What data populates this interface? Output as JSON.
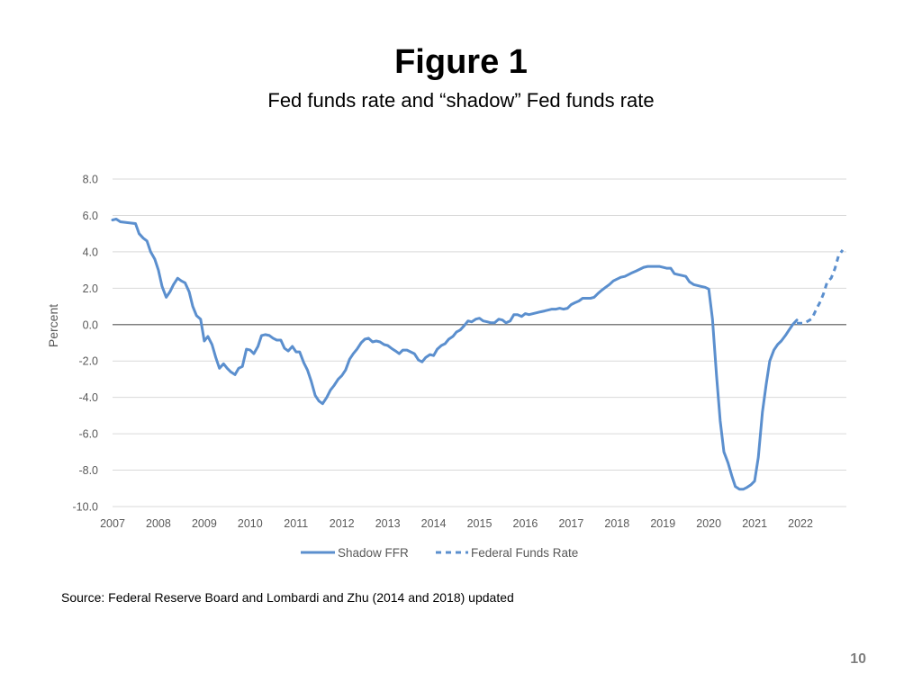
{
  "slide": {
    "title": "Figure 1",
    "subtitle": "Fed funds rate and “shadow” Fed funds rate",
    "source": "Source: Federal Reserve Board and Lombardi and Zhu (2014 and 2018) updated",
    "page_number": "10"
  },
  "colors": {
    "series": "#5B8FCE",
    "zero_line": "#808080",
    "grid": "#D9D9D9",
    "text": "#595959"
  },
  "chart_data": {
    "type": "line",
    "title": "",
    "xlabel": "",
    "ylabel": "Percent",
    "xlim": [
      2007.0,
      2023.0
    ],
    "ylim": [
      -10.0,
      8.0
    ],
    "x_ticks": [
      "2007",
      "2008",
      "2009",
      "2010",
      "2011",
      "2012",
      "2013",
      "2014",
      "2015",
      "2016",
      "2017",
      "2018",
      "2019",
      "2020",
      "2021",
      "2022"
    ],
    "y_ticks": [
      "8.0",
      "6.0",
      "4.0",
      "2.0",
      "0.0",
      "-2.0",
      "-4.0",
      "-6.0",
      "-8.0",
      "-10.0"
    ],
    "grid": true,
    "legend_position": "bottom",
    "series": [
      {
        "name": "Shadow FFR",
        "style": "solid",
        "points": [
          [
            2007.0,
            5.75
          ],
          [
            2007.08,
            5.8
          ],
          [
            2007.17,
            5.65
          ],
          [
            2007.33,
            5.6
          ],
          [
            2007.5,
            5.55
          ],
          [
            2007.58,
            5.0
          ],
          [
            2007.67,
            4.75
          ],
          [
            2007.75,
            4.6
          ],
          [
            2007.83,
            4.0
          ],
          [
            2007.92,
            3.6
          ],
          [
            2008.0,
            3.0
          ],
          [
            2008.08,
            2.1
          ],
          [
            2008.17,
            1.5
          ],
          [
            2008.25,
            1.8
          ],
          [
            2008.33,
            2.2
          ],
          [
            2008.42,
            2.55
          ],
          [
            2008.5,
            2.4
          ],
          [
            2008.58,
            2.3
          ],
          [
            2008.67,
            1.8
          ],
          [
            2008.75,
            1.0
          ],
          [
            2008.83,
            0.5
          ],
          [
            2008.92,
            0.3
          ],
          [
            2009.0,
            -0.9
          ],
          [
            2009.08,
            -0.65
          ],
          [
            2009.17,
            -1.1
          ],
          [
            2009.25,
            -1.8
          ],
          [
            2009.33,
            -2.4
          ],
          [
            2009.42,
            -2.15
          ],
          [
            2009.5,
            -2.4
          ],
          [
            2009.58,
            -2.6
          ],
          [
            2009.67,
            -2.75
          ],
          [
            2009.75,
            -2.4
          ],
          [
            2009.83,
            -2.3
          ],
          [
            2009.92,
            -1.35
          ],
          [
            2010.0,
            -1.4
          ],
          [
            2010.08,
            -1.6
          ],
          [
            2010.17,
            -1.2
          ],
          [
            2010.25,
            -0.6
          ],
          [
            2010.33,
            -0.55
          ],
          [
            2010.42,
            -0.6
          ],
          [
            2010.5,
            -0.75
          ],
          [
            2010.58,
            -0.85
          ],
          [
            2010.67,
            -0.85
          ],
          [
            2010.75,
            -1.3
          ],
          [
            2010.83,
            -1.45
          ],
          [
            2010.92,
            -1.2
          ],
          [
            2011.0,
            -1.5
          ],
          [
            2011.08,
            -1.5
          ],
          [
            2011.17,
            -2.1
          ],
          [
            2011.25,
            -2.5
          ],
          [
            2011.33,
            -3.1
          ],
          [
            2011.42,
            -3.9
          ],
          [
            2011.5,
            -4.2
          ],
          [
            2011.58,
            -4.35
          ],
          [
            2011.67,
            -4.0
          ],
          [
            2011.75,
            -3.6
          ],
          [
            2011.83,
            -3.35
          ],
          [
            2011.92,
            -3.0
          ],
          [
            2012.0,
            -2.8
          ],
          [
            2012.08,
            -2.5
          ],
          [
            2012.17,
            -1.9
          ],
          [
            2012.25,
            -1.6
          ],
          [
            2012.33,
            -1.35
          ],
          [
            2012.42,
            -1.0
          ],
          [
            2012.5,
            -0.8
          ],
          [
            2012.58,
            -0.75
          ],
          [
            2012.67,
            -0.95
          ],
          [
            2012.75,
            -0.9
          ],
          [
            2012.83,
            -0.95
          ],
          [
            2012.92,
            -1.1
          ],
          [
            2013.0,
            -1.15
          ],
          [
            2013.08,
            -1.3
          ],
          [
            2013.17,
            -1.45
          ],
          [
            2013.25,
            -1.6
          ],
          [
            2013.33,
            -1.4
          ],
          [
            2013.42,
            -1.4
          ],
          [
            2013.5,
            -1.5
          ],
          [
            2013.58,
            -1.6
          ],
          [
            2013.67,
            -1.95
          ],
          [
            2013.75,
            -2.05
          ],
          [
            2013.83,
            -1.8
          ],
          [
            2013.92,
            -1.65
          ],
          [
            2014.0,
            -1.7
          ],
          [
            2014.08,
            -1.35
          ],
          [
            2014.17,
            -1.15
          ],
          [
            2014.25,
            -1.05
          ],
          [
            2014.33,
            -0.8
          ],
          [
            2014.42,
            -0.65
          ],
          [
            2014.5,
            -0.4
          ],
          [
            2014.58,
            -0.3
          ],
          [
            2014.67,
            -0.05
          ],
          [
            2014.75,
            0.2
          ],
          [
            2014.83,
            0.15
          ],
          [
            2014.92,
            0.3
          ],
          [
            2015.0,
            0.35
          ],
          [
            2015.08,
            0.2
          ],
          [
            2015.17,
            0.15
          ],
          [
            2015.25,
            0.1
          ],
          [
            2015.33,
            0.1
          ],
          [
            2015.42,
            0.3
          ],
          [
            2015.5,
            0.25
          ],
          [
            2015.58,
            0.1
          ],
          [
            2015.67,
            0.2
          ],
          [
            2015.75,
            0.55
          ],
          [
            2015.83,
            0.55
          ],
          [
            2015.92,
            0.45
          ],
          [
            2016.0,
            0.6
          ],
          [
            2016.08,
            0.55
          ],
          [
            2016.17,
            0.6
          ],
          [
            2016.25,
            0.65
          ],
          [
            2016.33,
            0.7
          ],
          [
            2016.42,
            0.75
          ],
          [
            2016.5,
            0.8
          ],
          [
            2016.58,
            0.85
          ],
          [
            2016.67,
            0.85
          ],
          [
            2016.75,
            0.9
          ],
          [
            2016.83,
            0.85
          ],
          [
            2016.92,
            0.9
          ],
          [
            2017.0,
            1.1
          ],
          [
            2017.08,
            1.2
          ],
          [
            2017.17,
            1.3
          ],
          [
            2017.25,
            1.45
          ],
          [
            2017.33,
            1.45
          ],
          [
            2017.42,
            1.45
          ],
          [
            2017.5,
            1.5
          ],
          [
            2017.58,
            1.7
          ],
          [
            2017.67,
            1.9
          ],
          [
            2017.75,
            2.05
          ],
          [
            2017.83,
            2.2
          ],
          [
            2017.92,
            2.4
          ],
          [
            2018.0,
            2.5
          ],
          [
            2018.08,
            2.6
          ],
          [
            2018.17,
            2.65
          ],
          [
            2018.25,
            2.75
          ],
          [
            2018.33,
            2.85
          ],
          [
            2018.42,
            2.95
          ],
          [
            2018.5,
            3.05
          ],
          [
            2018.58,
            3.15
          ],
          [
            2018.67,
            3.2
          ],
          [
            2018.75,
            3.2
          ],
          [
            2018.83,
            3.2
          ],
          [
            2018.92,
            3.2
          ],
          [
            2019.0,
            3.15
          ],
          [
            2019.08,
            3.1
          ],
          [
            2019.17,
            3.1
          ],
          [
            2019.25,
            2.8
          ],
          [
            2019.33,
            2.75
          ],
          [
            2019.42,
            2.7
          ],
          [
            2019.5,
            2.65
          ],
          [
            2019.58,
            2.35
          ],
          [
            2019.67,
            2.2
          ],
          [
            2019.75,
            2.15
          ],
          [
            2019.83,
            2.1
          ],
          [
            2019.92,
            2.05
          ],
          [
            2020.0,
            1.95
          ],
          [
            2020.08,
            0.3
          ],
          [
            2020.17,
            -2.8
          ],
          [
            2020.25,
            -5.3
          ],
          [
            2020.33,
            -7.0
          ],
          [
            2020.42,
            -7.6
          ],
          [
            2020.5,
            -8.3
          ],
          [
            2020.58,
            -8.9
          ],
          [
            2020.67,
            -9.05
          ],
          [
            2020.75,
            -9.05
          ],
          [
            2020.83,
            -8.95
          ],
          [
            2020.92,
            -8.8
          ],
          [
            2021.0,
            -8.6
          ],
          [
            2021.08,
            -7.3
          ],
          [
            2021.17,
            -4.8
          ],
          [
            2021.25,
            -3.3
          ],
          [
            2021.33,
            -2.0
          ],
          [
            2021.42,
            -1.4
          ],
          [
            2021.5,
            -1.1
          ],
          [
            2021.58,
            -0.9
          ],
          [
            2021.67,
            -0.6
          ],
          [
            2021.75,
            -0.3
          ],
          [
            2021.83,
            0.0
          ],
          [
            2021.92,
            0.25
          ]
        ]
      },
      {
        "name": "Federal Funds Rate",
        "style": "dashed",
        "points": [
          [
            2021.92,
            0.08
          ],
          [
            2022.0,
            0.08
          ],
          [
            2022.08,
            0.08
          ],
          [
            2022.17,
            0.2
          ],
          [
            2022.25,
            0.33
          ],
          [
            2022.33,
            0.77
          ],
          [
            2022.42,
            1.21
          ],
          [
            2022.5,
            1.68
          ],
          [
            2022.58,
            2.33
          ],
          [
            2022.67,
            2.56
          ],
          [
            2022.75,
            3.08
          ],
          [
            2022.83,
            3.78
          ],
          [
            2022.92,
            4.1
          ]
        ]
      }
    ]
  }
}
